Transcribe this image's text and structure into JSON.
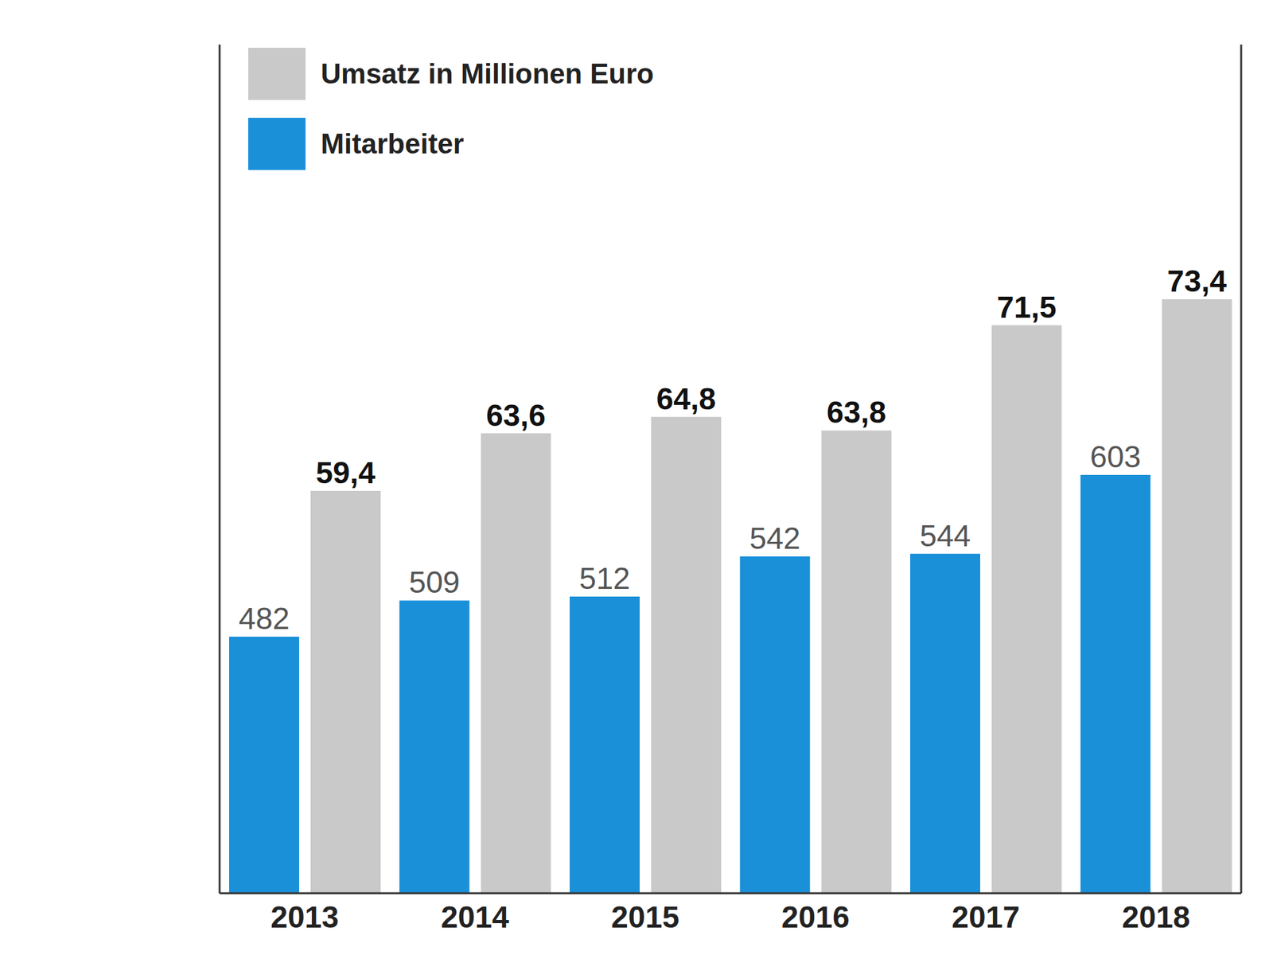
{
  "chart_data": {
    "type": "bar",
    "categories": [
      "2013",
      "2014",
      "2015",
      "2016",
      "2017",
      "2018"
    ],
    "series": [
      {
        "name": "Mitarbeiter",
        "color": "#1a90d9",
        "values": [
          482,
          509,
          512,
          542,
          544,
          603
        ]
      },
      {
        "name": "Umsatz in Millionen Euro",
        "color": "#c9c9c9",
        "axis": "y2",
        "values": [
          59.4,
          63.6,
          64.8,
          63.8,
          71.5,
          73.4
        ],
        "value_labels": [
          "59,4",
          "63,6",
          "64,8",
          "63,8",
          "71,5",
          "73,4"
        ]
      }
    ],
    "ylim": [
      290,
      925
    ],
    "y2lim": [
      30,
      92
    ],
    "data_labels": true,
    "tick_labels": false,
    "legend": "top-left",
    "grid": false
  }
}
